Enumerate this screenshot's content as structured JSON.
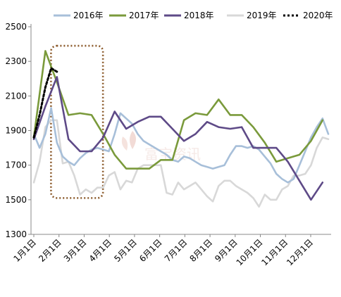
{
  "chart_data": {
    "type": "line",
    "title": "",
    "xlabel": "",
    "ylabel": "",
    "ylim": [
      1300,
      2500
    ],
    "yticks": [
      1300,
      1500,
      1700,
      1900,
      2100,
      2300,
      2500
    ],
    "grid": false,
    "legend_position": "top",
    "x_tick_labels": [
      "1月1日",
      "2月1日",
      "3月1日",
      "4月1日",
      "5月1日",
      "6月1日",
      "7月1日",
      "8月1日",
      "9月1日",
      "10月1日",
      "11月1日",
      "12月1日"
    ],
    "x_unit": "week",
    "series": [
      {
        "name": "2016年",
        "color": "#a7bfd9",
        "dash": "solid",
        "x": [
          0,
          1,
          2,
          3,
          4,
          5,
          6,
          7,
          8,
          9,
          10,
          11,
          12,
          13,
          14,
          15,
          16,
          17,
          18,
          19,
          20,
          21,
          22,
          23,
          24,
          25,
          26,
          27,
          28,
          29,
          30,
          31,
          32,
          33,
          34,
          35,
          36,
          37,
          38,
          39,
          40,
          41,
          42,
          43,
          44,
          45,
          46,
          47,
          48,
          49,
          50,
          51
        ],
        "values": [
          1880,
          1800,
          1880,
          2030,
          1830,
          1750,
          1720,
          1700,
          1740,
          1770,
          1790,
          1800,
          1790,
          1780,
          1880,
          2000,
          1970,
          1940,
          1880,
          1840,
          1820,
          1800,
          1780,
          1760,
          1730,
          1720,
          1750,
          1740,
          1720,
          1700,
          1690,
          1680,
          1690,
          1700,
          1760,
          1810,
          1810,
          1800,
          1810,
          1790,
          1750,
          1710,
          1650,
          1620,
          1600,
          1620,
          1700,
          1780,
          1860,
          1920,
          1970,
          1880
        ]
      },
      {
        "name": "2017年",
        "color": "#7a9a3b",
        "dash": "solid",
        "x": [
          0,
          2,
          4,
          6,
          8,
          10,
          12,
          14,
          16,
          18,
          20,
          22,
          24,
          26,
          28,
          30,
          32,
          34,
          36,
          38,
          40,
          42,
          44,
          46,
          48,
          50
        ],
        "values": [
          1860,
          2360,
          2180,
          1990,
          2000,
          1990,
          1880,
          1760,
          1680,
          1680,
          1680,
          1730,
          1730,
          1960,
          2000,
          1990,
          2080,
          1990,
          1990,
          1920,
          1830,
          1720,
          1740,
          1760,
          1840,
          1960
        ]
      },
      {
        "name": "2018年",
        "color": "#5e4a87",
        "dash": "solid",
        "x": [
          0,
          2,
          4,
          6,
          8,
          10,
          12,
          14,
          16,
          18,
          20,
          22,
          24,
          26,
          28,
          30,
          32,
          34,
          36,
          38,
          40,
          42,
          44,
          46,
          48,
          50
        ],
        "values": [
          1850,
          2040,
          2210,
          1850,
          1780,
          1780,
          1860,
          2010,
          1910,
          1950,
          1980,
          1980,
          1910,
          1840,
          1880,
          1950,
          1920,
          1910,
          1920,
          1800,
          1800,
          1800,
          1720,
          1610,
          1500,
          1600
        ]
      },
      {
        "name": "2019年",
        "color": "#d8d8d8",
        "dash": "solid",
        "x": [
          0,
          1,
          2,
          3,
          4,
          5,
          6,
          7,
          8,
          9,
          10,
          11,
          12,
          13,
          14,
          15,
          16,
          17,
          18,
          19,
          20,
          21,
          22,
          23,
          24,
          25,
          26,
          27,
          28,
          29,
          30,
          31,
          32,
          33,
          34,
          35,
          36,
          37,
          38,
          39,
          40,
          41,
          42,
          43,
          44,
          45,
          46,
          47,
          48,
          49,
          50,
          51
        ],
        "values": [
          1600,
          1720,
          1920,
          1960,
          1960,
          1710,
          1720,
          1640,
          1530,
          1560,
          1540,
          1570,
          1570,
          1640,
          1660,
          1560,
          1610,
          1600,
          1680,
          1700,
          1700,
          1700,
          1700,
          1540,
          1530,
          1600,
          1560,
          1580,
          1600,
          1560,
          1520,
          1490,
          1580,
          1610,
          1610,
          1580,
          1560,
          1540,
          1510,
          1460,
          1530,
          1500,
          1500,
          1560,
          1580,
          1640,
          1640,
          1650,
          1700,
          1800,
          1860,
          1850
        ]
      },
      {
        "name": "2020年",
        "color": "#000000",
        "dash": "dotted",
        "x": [
          0,
          1,
          2,
          3,
          4
        ],
        "values": [
          1860,
          1990,
          2150,
          2260,
          2240
        ]
      }
    ],
    "annotations": [
      {
        "type": "rounded-rectangle",
        "style": "dotted",
        "color": "#8b5a2b",
        "x_range": [
          2,
          11
        ],
        "y_range": [
          1510,
          2390
        ]
      }
    ],
    "watermark": "富宝资讯"
  }
}
